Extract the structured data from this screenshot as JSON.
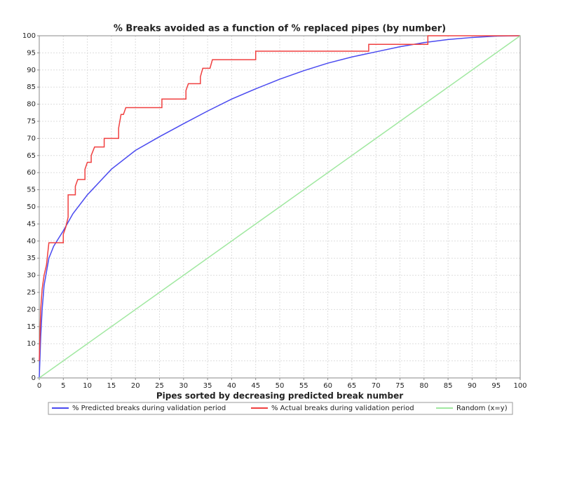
{
  "chart_data": {
    "type": "line",
    "title": "% Breaks avoided as a function of % replaced pipes (by number)",
    "x_label": "Pipes sorted by decreasing predicted break number",
    "xlim": [
      0,
      100
    ],
    "ylim": [
      0,
      100
    ],
    "xticks": [
      0,
      5,
      10,
      15,
      20,
      25,
      30,
      35,
      40,
      45,
      50,
      55,
      60,
      65,
      70,
      75,
      80,
      85,
      90,
      95,
      100
    ],
    "yticks": [
      0,
      5,
      10,
      15,
      20,
      25,
      30,
      35,
      40,
      45,
      50,
      55,
      60,
      65,
      70,
      75,
      80,
      85,
      90,
      95,
      100
    ],
    "grid": true,
    "legend": "bottom",
    "series": [
      {
        "name": "% Predicted breaks during validation period",
        "color": "#4a4af0",
        "x": [
          0,
          0.3,
          0.6,
          1,
          1.5,
          2,
          3,
          5,
          7,
          10,
          15,
          20,
          25,
          30,
          35,
          40,
          45,
          50,
          55,
          60,
          65,
          70,
          75,
          80,
          85,
          90,
          95,
          100
        ],
        "values": [
          0,
          12,
          20,
          27,
          31,
          35,
          38.5,
          43,
          48,
          53.5,
          61,
          66.5,
          70.5,
          74.3,
          78,
          81.5,
          84.5,
          87.3,
          89.8,
          92,
          93.8,
          95.3,
          96.8,
          98,
          98.9,
          99.5,
          99.9,
          100
        ]
      },
      {
        "name": "% Actual breaks during validation period",
        "color": "#f04040",
        "x": [
          0,
          0.3,
          0.6,
          1,
          1.5,
          2,
          5,
          5,
          5.5,
          6,
          6,
          7.5,
          7.5,
          8,
          9.5,
          9.5,
          10,
          10.8,
          10.8,
          11.5,
          13.5,
          13.5,
          16.5,
          16.5,
          17,
          17.5,
          18,
          25.5,
          25.5,
          30.5,
          30.5,
          31,
          33.5,
          33.5,
          34,
          35.5,
          36,
          45,
          45,
          68.5,
          68.5,
          80.8,
          80.8,
          100
        ],
        "values": [
          5,
          20,
          26,
          30,
          33,
          39.5,
          39.5,
          42,
          44,
          47,
          53.5,
          53.5,
          56,
          58,
          58,
          61,
          63,
          63,
          65,
          67.5,
          67.5,
          70,
          70,
          73,
          77,
          77,
          79,
          79,
          81.5,
          81.5,
          84,
          86,
          86,
          88,
          90.5,
          90.5,
          93,
          93,
          95.5,
          95.5,
          97.5,
          97.5,
          100,
          100
        ]
      },
      {
        "name": "Random (x=y)",
        "color": "#a0e8a0",
        "x": [
          0,
          100
        ],
        "values": [
          0,
          100
        ]
      }
    ]
  }
}
